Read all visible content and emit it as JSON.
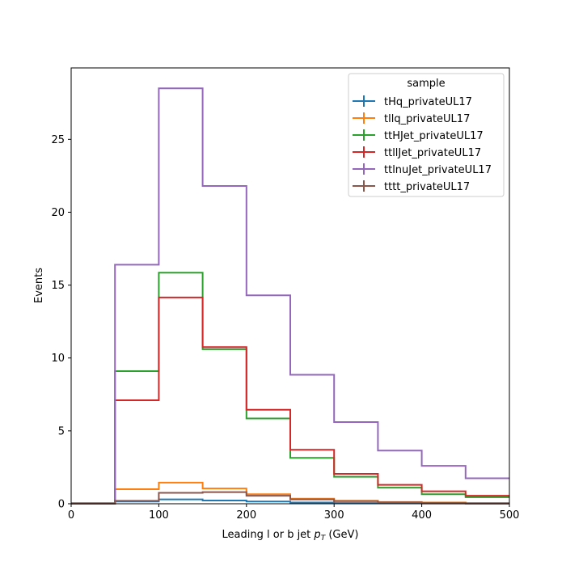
{
  "chart_data": {
    "type": "histogram-step",
    "xlabel_prefix": "Leading l or b jet ",
    "xlabel_var": "p",
    "xlabel_sub": "T",
    "xlabel_unit": " (GeV)",
    "ylabel": "Events",
    "xlim": [
      0,
      500
    ],
    "ylim": [
      0,
      29.9
    ],
    "xticks": [
      0,
      100,
      200,
      300,
      400,
      500
    ],
    "yticks": [
      0,
      5,
      10,
      15,
      20,
      25
    ],
    "bin_edges": [
      0,
      50,
      100,
      150,
      200,
      250,
      300,
      350,
      400,
      450,
      500
    ],
    "legend_title": "sample",
    "legend_position": "upper-right",
    "grid": false,
    "series": [
      {
        "name": "tHq_privateUL17",
        "color": "#1f77b4",
        "values": [
          0.0,
          0.15,
          0.3,
          0.22,
          0.15,
          0.08,
          0.05,
          0.03,
          0.02,
          0.01
        ]
      },
      {
        "name": "tllq_privateUL17",
        "color": "#ff7f0e",
        "values": [
          0.0,
          1.0,
          1.45,
          1.05,
          0.65,
          0.35,
          0.2,
          0.12,
          0.08,
          0.05
        ]
      },
      {
        "name": "ttHJet_privateUL17",
        "color": "#2ca02c",
        "values": [
          0.0,
          9.1,
          15.85,
          10.6,
          5.85,
          3.15,
          1.85,
          1.1,
          0.65,
          0.45
        ]
      },
      {
        "name": "ttllJet_privateUL17",
        "color": "#d62728",
        "values": [
          0.0,
          7.1,
          14.15,
          10.75,
          6.45,
          3.7,
          2.05,
          1.3,
          0.85,
          0.55
        ]
      },
      {
        "name": "ttlnuJet_privateUL17",
        "color": "#9467bd",
        "values": [
          0.05,
          16.4,
          28.5,
          21.8,
          14.3,
          8.85,
          5.6,
          3.65,
          2.6,
          1.75
        ]
      },
      {
        "name": "tttt_privateUL17",
        "color": "#8c564b",
        "values": [
          0.0,
          0.2,
          0.75,
          0.8,
          0.55,
          0.3,
          0.18,
          0.1,
          0.06,
          0.03
        ]
      }
    ]
  }
}
